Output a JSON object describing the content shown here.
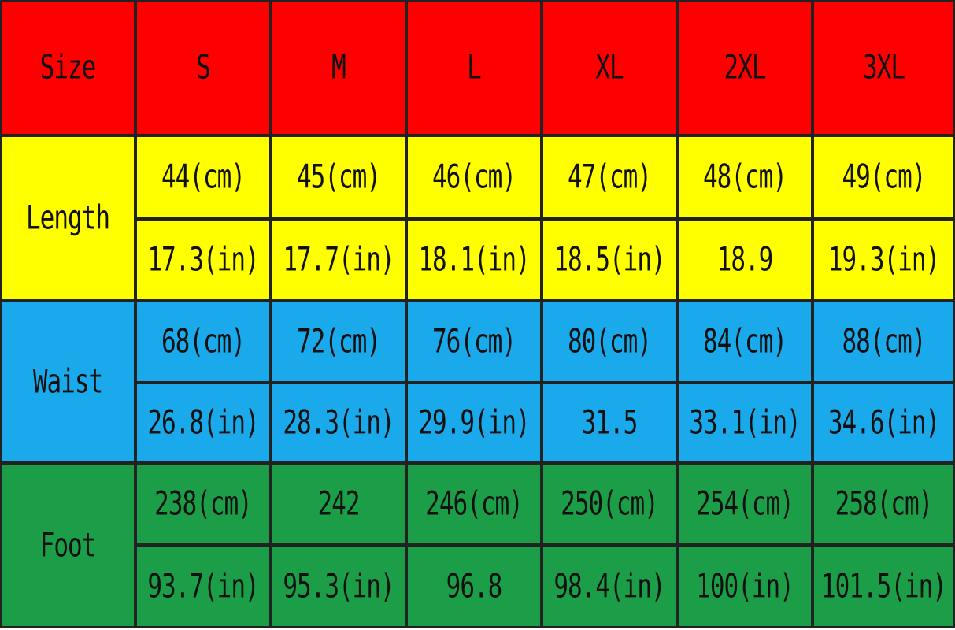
{
  "table": {
    "header": [
      "Size",
      "S",
      "M",
      "L",
      "XL",
      "2XL",
      "3XL"
    ],
    "groups": [
      {
        "label": "Length",
        "rows": [
          [
            "44(cm)",
            "45(cm)",
            "46(cm)",
            "47(cm)",
            "48(cm)",
            "49(cm)"
          ],
          [
            "17.3(in)",
            "17.7(in)",
            "18.1(in)",
            "18.5(in)",
            "18.9",
            "19.3(in)"
          ]
        ]
      },
      {
        "label": "Waist",
        "rows": [
          [
            "68(cm)",
            "72(cm)",
            "76(cm)",
            "80(cm)",
            "84(cm)",
            "88(cm)"
          ],
          [
            "26.8(in)",
            "28.3(in)",
            "29.9(in)",
            "31.5",
            "33.1(in)",
            "34.6(in)"
          ]
        ]
      },
      {
        "label": "Foot",
        "rows": [
          [
            "238(cm)",
            "242",
            "246(cm)",
            "250(cm)",
            "254(cm)",
            "258(cm)"
          ],
          [
            "93.7(in)",
            "95.3(in)",
            "96.8",
            "98.4(in)",
            "100(in)",
            "101.5(in)"
          ]
        ]
      }
    ]
  }
}
